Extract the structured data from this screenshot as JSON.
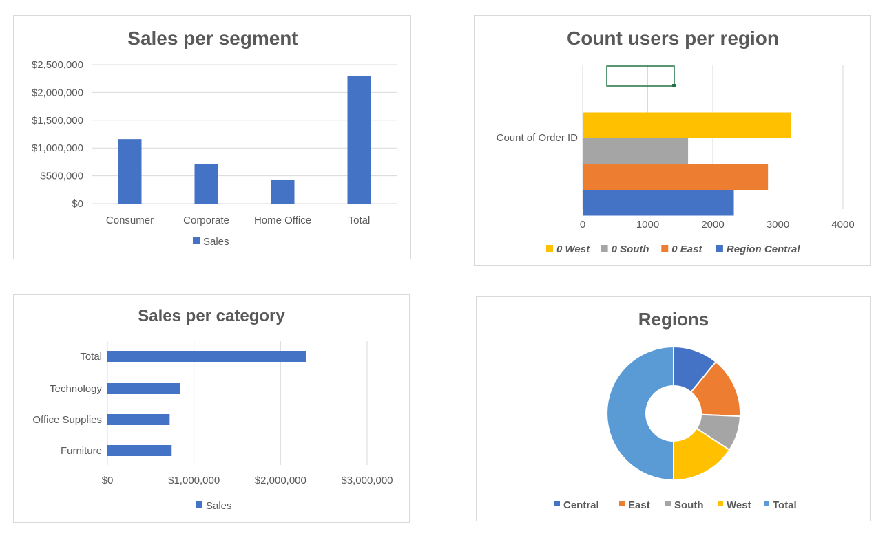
{
  "chart_data": [
    {
      "type": "bar",
      "title": "Sales per segment",
      "categories": [
        "Consumer",
        "Corporate",
        "Home Office",
        "Total"
      ],
      "series": [
        {
          "name": "Sales",
          "values": [
            1161401,
            706146,
            429653,
            2297201
          ],
          "color": "#4472C4"
        }
      ],
      "yticks": [
        "$0",
        "$500,000",
        "$1,000,000",
        "$1,500,000",
        "$2,000,000",
        "$2,500,000"
      ],
      "ylim": [
        0,
        2500000
      ],
      "grid": true,
      "legend": "bottom"
    },
    {
      "type": "bar",
      "orientation": "horizontal",
      "title": "Count users per region",
      "category": "Count of Order ID",
      "series": [
        {
          "name": "Region Central",
          "value": 2323,
          "color": "#4472C4"
        },
        {
          "name": "0 East",
          "value": 2848,
          "color": "#ED7D31"
        },
        {
          "name": "0 South",
          "value": 1620,
          "color": "#A5A5A5"
        },
        {
          "name": "0 West",
          "value": 3203,
          "color": "#FFC000"
        }
      ],
      "xticks": [
        "0",
        "1000",
        "2000",
        "3000",
        "4000"
      ],
      "xlim": [
        0,
        4000
      ],
      "grid": true,
      "legend": "bottom"
    },
    {
      "type": "bar",
      "orientation": "horizontal",
      "title": "Sales per category",
      "categories": [
        "Furniture",
        "Office Supplies",
        "Technology",
        "Total"
      ],
      "series": [
        {
          "name": "Sales",
          "values": [
            741999,
            719047,
            836154,
            2297201
          ],
          "color": "#4472C4"
        }
      ],
      "xticks": [
        "$0",
        "$1,000,000",
        "$2,000,000",
        "$3,000,000"
      ],
      "xlim": [
        0,
        3000000
      ],
      "grid": true,
      "legend": "bottom"
    },
    {
      "type": "pie",
      "title": "Regions",
      "labels": [
        "Central",
        "East",
        "South",
        "West",
        "Total"
      ],
      "values": [
        501240,
        678781,
        391722,
        725458,
        2297201
      ],
      "colors": [
        "#4472C4",
        "#ED7D31",
        "#A5A5A5",
        "#FFC000",
        "#5B9BD5"
      ],
      "legend": "bottom"
    }
  ]
}
